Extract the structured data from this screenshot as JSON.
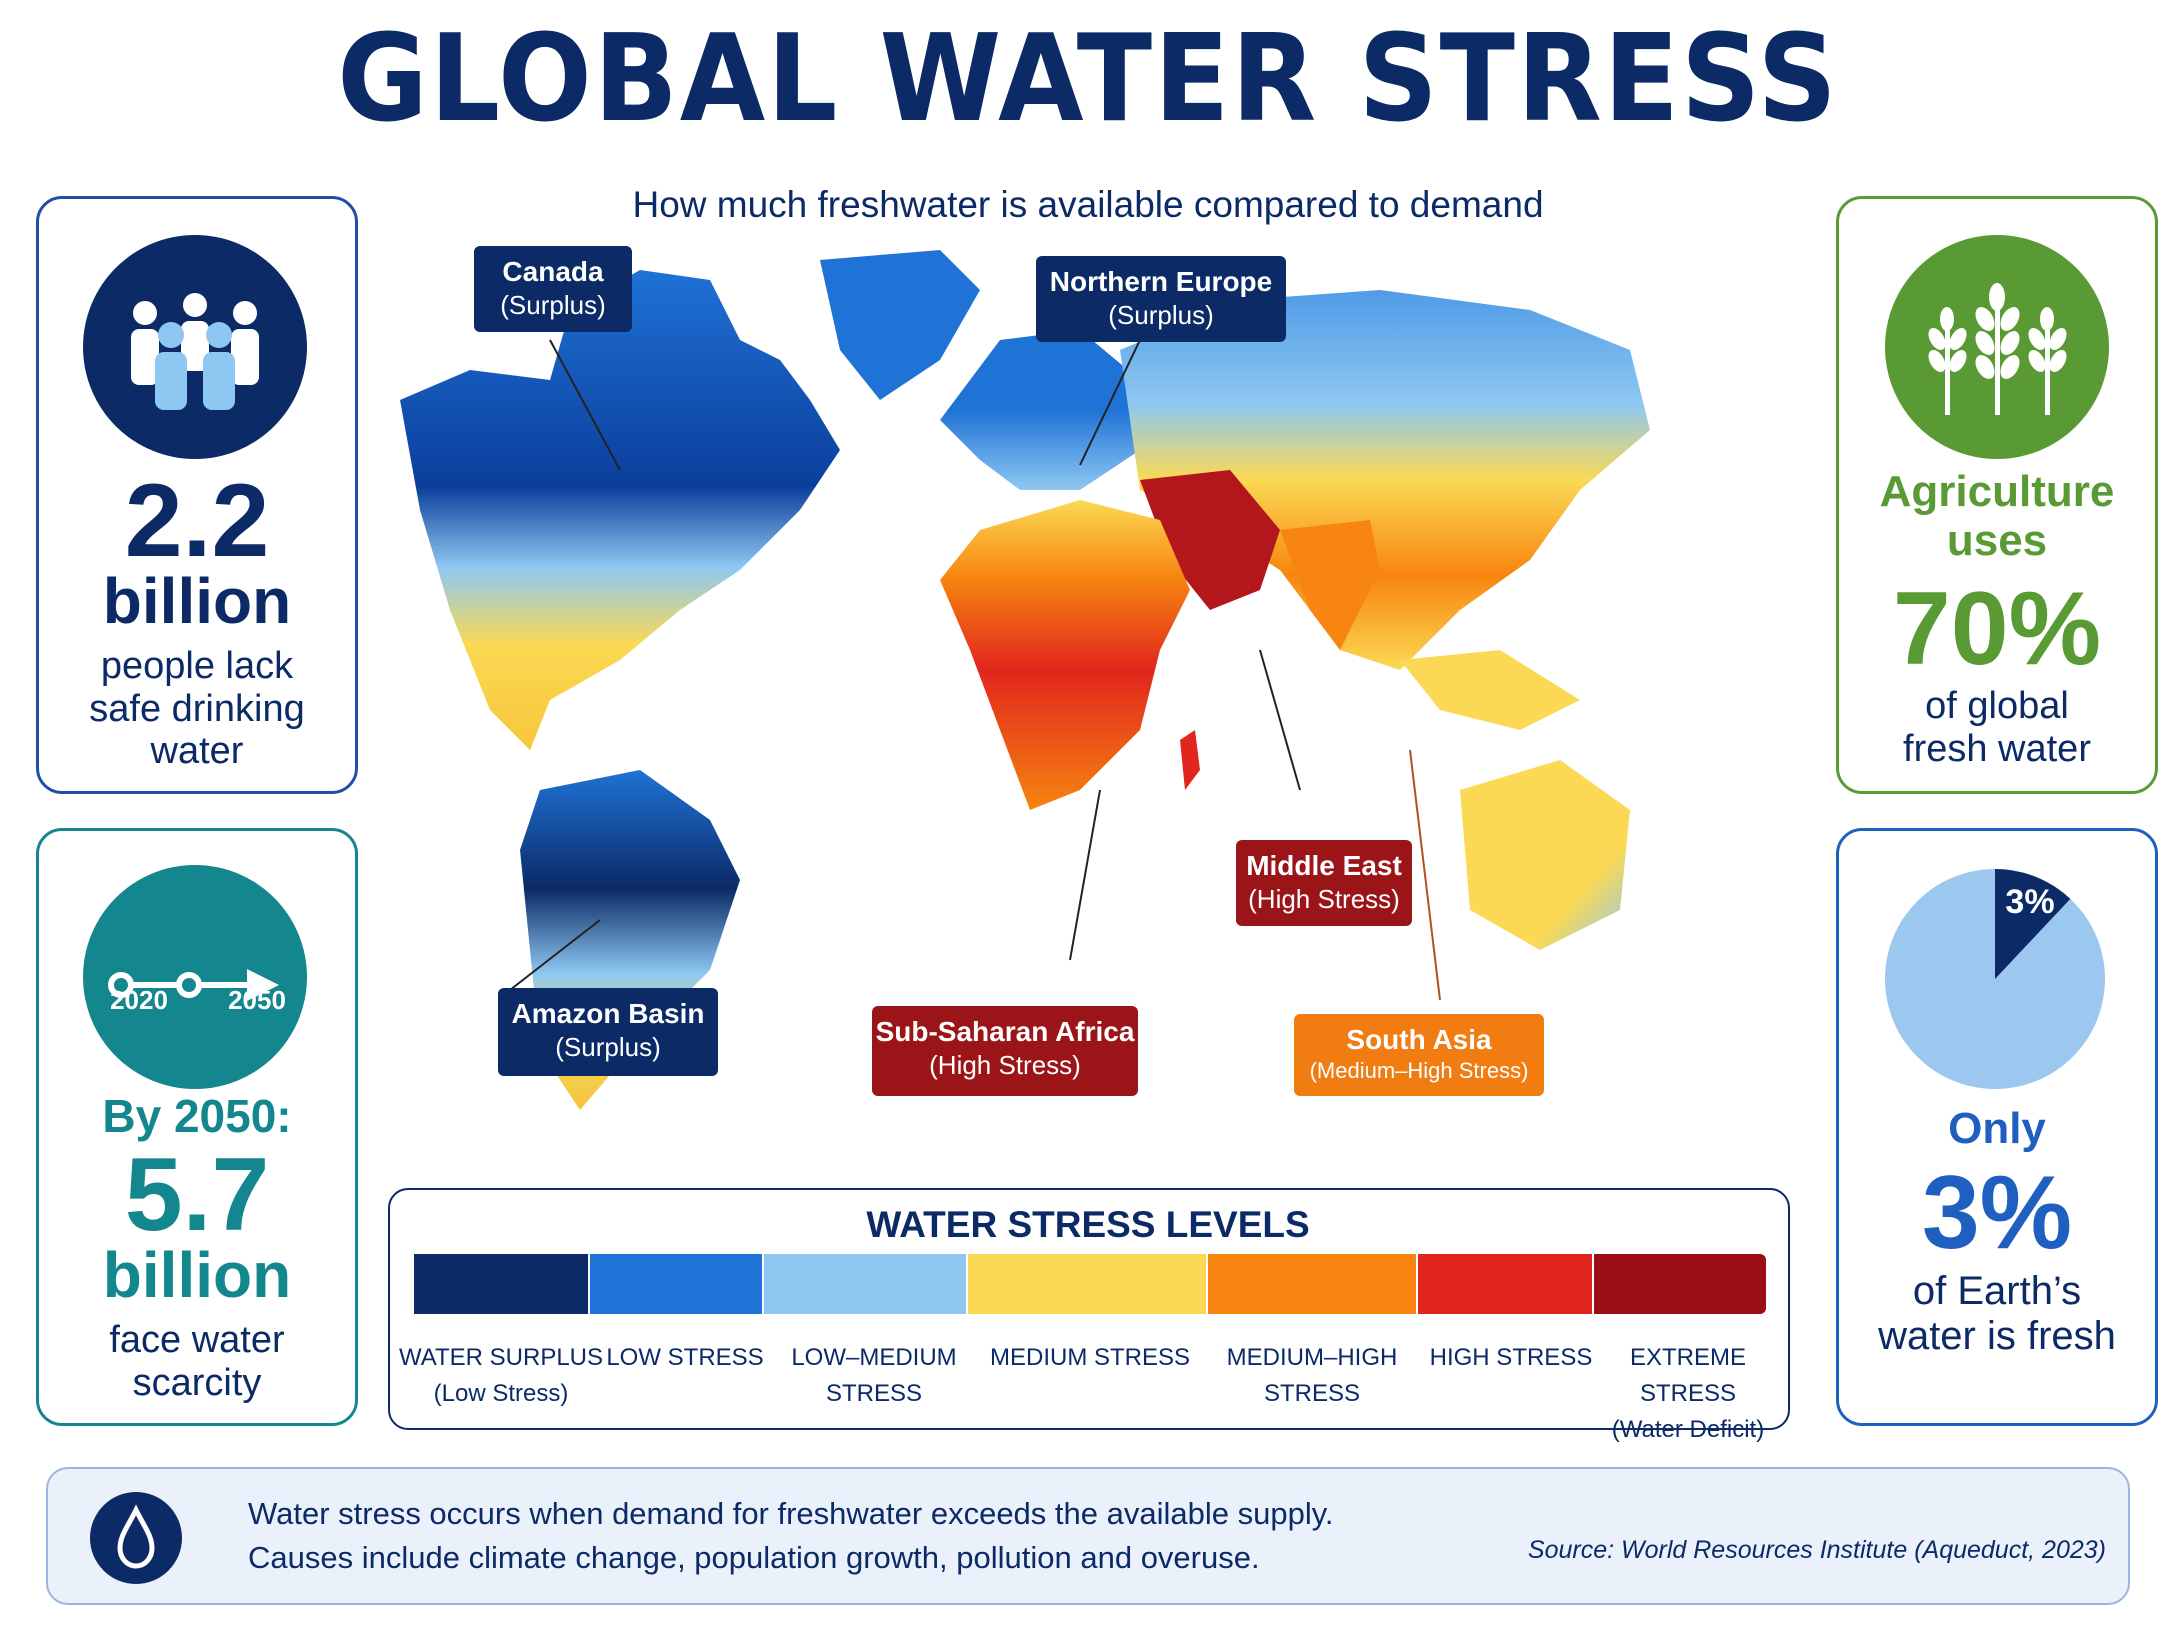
{
  "header": {
    "title": "GLOBAL WATER STRESS",
    "subtitle": "How much freshwater is available compared to demand"
  },
  "left_top_card": {
    "icon": "people-group-icon",
    "value": "2.2",
    "unit": "billion",
    "text_lines": [
      "people lack",
      "safe drinking",
      "water"
    ]
  },
  "left_bottom_card": {
    "icon": "timeline-arrow-icon",
    "year_start": "2020",
    "year_end": "2050",
    "lead": "By 2050:",
    "value": "5.7",
    "unit": "billion",
    "text_lines": [
      "face water",
      "scarcity"
    ]
  },
  "right_top_card": {
    "icon": "wheat-icon",
    "lead_lines": [
      "Agriculture",
      "uses"
    ],
    "value": "70%",
    "text_lines": [
      "of global",
      "fresh water"
    ]
  },
  "right_bottom_card": {
    "icon": "pie-chart-icon",
    "pie_label": "3%",
    "pie_fraction": 0.03,
    "lead": "Only",
    "value": "3%",
    "text_lines": [
      "of Earth’s",
      "water is fresh"
    ]
  },
  "map_labels": [
    {
      "name": "Canada",
      "status": "(Surplus)",
      "color": "#0b2a66"
    },
    {
      "name": "Northern Europe",
      "status": "(Surplus)",
      "color": "#0b2a66"
    },
    {
      "name": "Amazon Basin",
      "status": "(Surplus)",
      "color": "#0b2a66"
    },
    {
      "name": "Middle East",
      "status": "(High Stress)",
      "color": "#9b1418"
    },
    {
      "name": "Sub-Saharan Africa",
      "status": "(High Stress)",
      "color": "#9b1418"
    },
    {
      "name": "South Asia",
      "status": "(Medium–High Stress)",
      "color": "#f07c12"
    }
  ],
  "legend": {
    "title": "WATER STRESS LEVELS",
    "levels": [
      {
        "line1": "WATER SURPLUS",
        "line2": "(Low Stress)",
        "color": "#0b2a66"
      },
      {
        "line1": "LOW STRESS",
        "line2": "",
        "color": "#1f72d6"
      },
      {
        "line1": "LOW–MEDIUM",
        "line2": "STRESS",
        "color": "#8ec8f2"
      },
      {
        "line1": "MEDIUM STRESS",
        "line2": "",
        "color": "#fbd954"
      },
      {
        "line1": "MEDIUM–HIGH",
        "line2": "STRESS",
        "color": "#f7850f"
      },
      {
        "line1": "HIGH STRESS",
        "line2": "",
        "color": "#e0261d"
      },
      {
        "line1": "EXTREME STRESS",
        "line2": "(Water Deficit)",
        "color": "#9b0d12"
      }
    ]
  },
  "footer": {
    "icon": "water-drop-icon",
    "line1": "Water stress occurs when demand for freshwater exceeds the available supply.",
    "line2": "Causes include climate change, population growth, pollution and overuse.",
    "source": "Source: World Resources Institute (Aqueduct, 2023)"
  },
  "colors": {
    "navy": "#0b2a66",
    "teal": "#14868e",
    "green": "#5a9a35",
    "blue": "#1f5fbf"
  }
}
